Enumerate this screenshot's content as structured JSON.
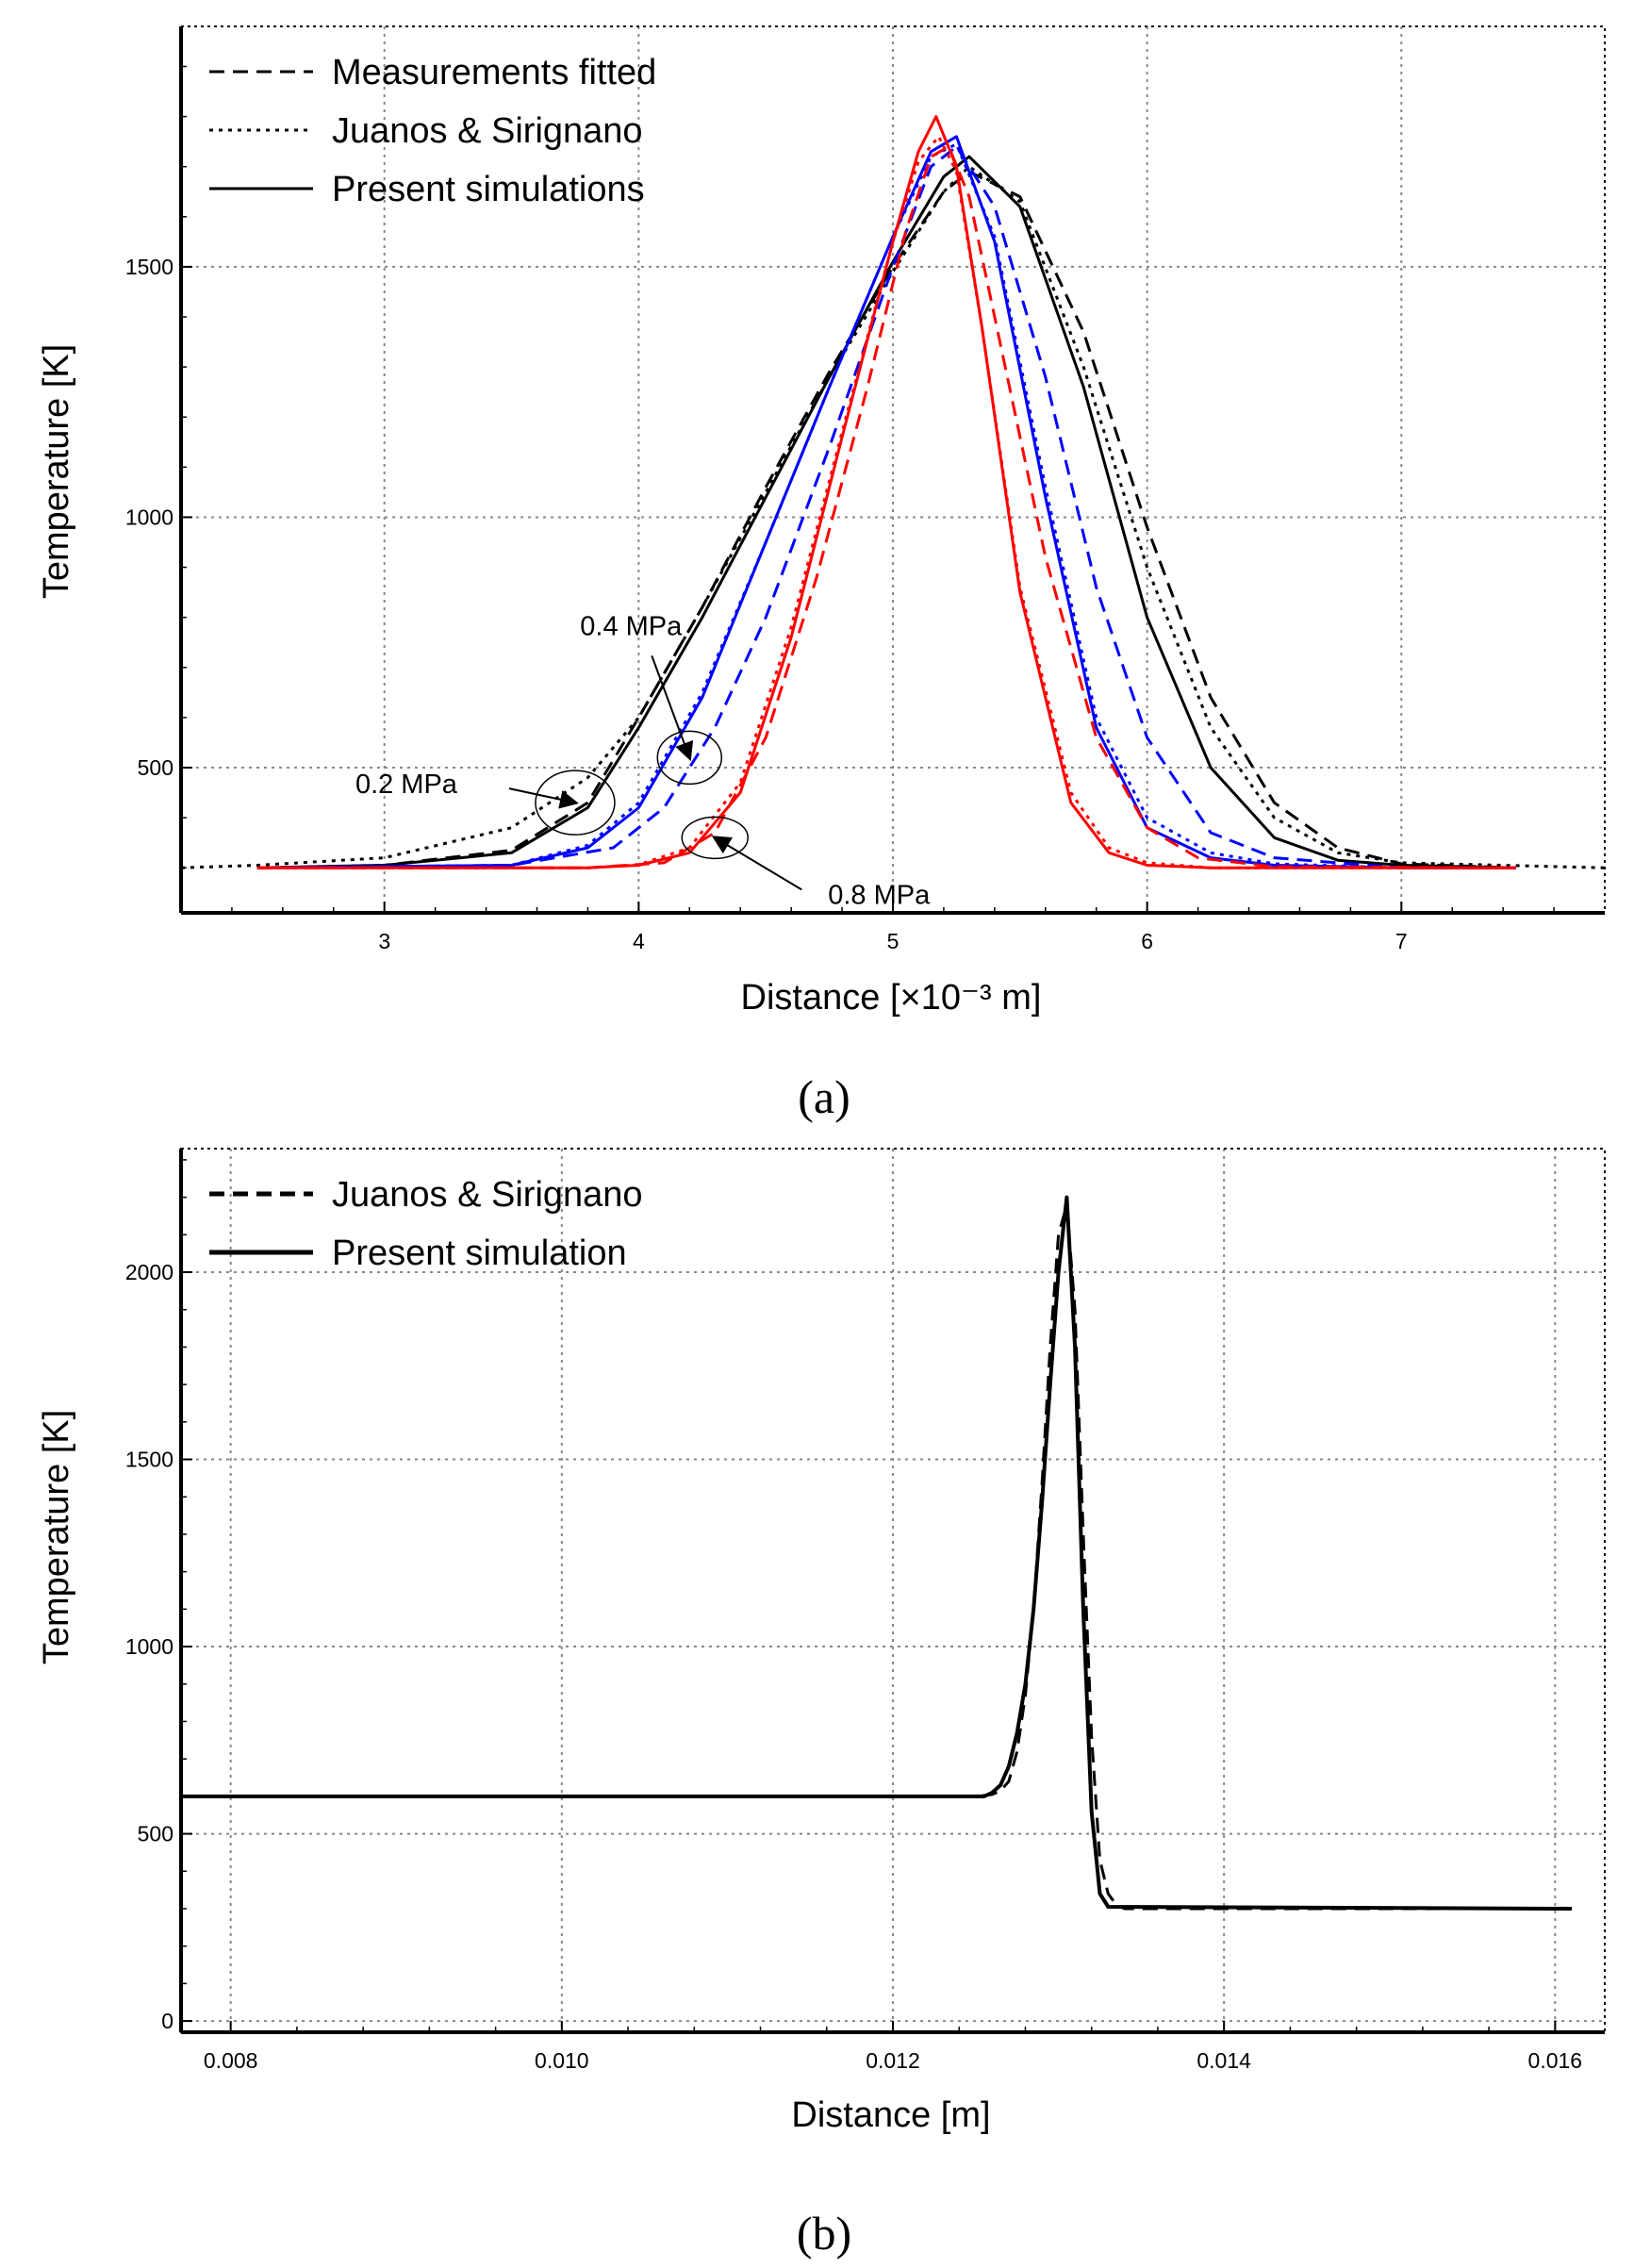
{
  "chart_data": [
    {
      "type": "line",
      "caption": "(a)",
      "xlabel": "Distance [×10⁻³ m]",
      "ylabel": "Temperature [K]",
      "xlim": [
        2.2,
        7.8
      ],
      "ylim": [
        210,
        1980
      ],
      "xticks": [
        3,
        4,
        5,
        6,
        7
      ],
      "yticks": [
        500,
        1000,
        1500
      ],
      "grid": true,
      "legend_position": "top-left",
      "legend": [
        {
          "label": "Measurements fitted",
          "style": "dashed"
        },
        {
          "label": "Juanos & Sirignano",
          "style": "dotted"
        },
        {
          "label": "Present simulations",
          "style": "solid"
        }
      ],
      "annotations": [
        {
          "text": "0.4 MPa",
          "x": 4.2,
          "y": 520
        },
        {
          "text": "0.2 MPa",
          "x": 3.75,
          "y": 430
        },
        {
          "text": "0.8 MPa",
          "x": 4.3,
          "y": 360
        }
      ],
      "colors": {
        "0.2 MPa": "#000000",
        "0.4 MPa": "#0000ff",
        "0.8 MPa": "#ff0000"
      },
      "series": [
        {
          "pressure": "0.2 MPa",
          "style": "solid",
          "x": [
            2.5,
            3.0,
            3.5,
            3.8,
            4.0,
            4.25,
            4.5,
            4.75,
            5.0,
            5.2,
            5.3,
            5.5,
            5.75,
            6.0,
            6.25,
            6.5,
            6.75,
            7.0,
            7.45
          ],
          "values": [
            300,
            305,
            330,
            420,
            580,
            800,
            1040,
            1280,
            1510,
            1680,
            1720,
            1620,
            1260,
            800,
            500,
            360,
            315,
            305,
            300
          ]
        },
        {
          "pressure": "0.2 MPa",
          "style": "dashed",
          "x": [
            2.5,
            3.0,
            3.5,
            3.8,
            4.0,
            4.25,
            4.5,
            4.75,
            5.0,
            5.2,
            5.3,
            5.5,
            5.75,
            6.0,
            6.25,
            6.5,
            6.75,
            7.0,
            7.45
          ],
          "values": [
            300,
            305,
            335,
            430,
            600,
            820,
            1060,
            1290,
            1500,
            1650,
            1690,
            1640,
            1370,
            980,
            640,
            430,
            340,
            308,
            300
          ]
        },
        {
          "pressure": "0.2 MPa",
          "style": "dotted",
          "x": [
            2.2,
            2.5,
            3.0,
            3.5,
            3.8,
            4.0,
            4.25,
            4.5,
            4.75,
            5.0,
            5.2,
            5.3,
            5.5,
            5.75,
            6.0,
            6.25,
            6.5,
            6.75,
            7.0,
            7.8
          ],
          "values": [
            300,
            305,
            320,
            380,
            480,
            600,
            820,
            1050,
            1280,
            1490,
            1650,
            1700,
            1630,
            1300,
            900,
            580,
            400,
            330,
            310,
            300
          ]
        },
        {
          "pressure": "0.4 MPa",
          "style": "solid",
          "x": [
            2.5,
            3.5,
            3.8,
            4.0,
            4.25,
            4.5,
            4.75,
            5.0,
            5.15,
            5.25,
            5.4,
            5.6,
            5.8,
            6.0,
            6.25,
            6.5,
            7.0,
            7.45
          ],
          "values": [
            300,
            305,
            340,
            420,
            640,
            950,
            1260,
            1560,
            1730,
            1760,
            1550,
            1040,
            580,
            380,
            320,
            305,
            300,
            300
          ]
        },
        {
          "pressure": "0.4 MPa",
          "style": "dashed",
          "x": [
            2.5,
            3.5,
            3.9,
            4.1,
            4.3,
            4.5,
            4.75,
            5.0,
            5.15,
            5.25,
            5.4,
            5.6,
            5.8,
            6.0,
            6.25,
            6.5,
            7.0,
            7.45
          ],
          "values": [
            300,
            305,
            340,
            420,
            580,
            800,
            1140,
            1500,
            1700,
            1740,
            1620,
            1280,
            860,
            560,
            370,
            320,
            300,
            300
          ]
        },
        {
          "pressure": "0.4 MPa",
          "style": "dotted",
          "x": [
            2.5,
            3.5,
            3.8,
            4.0,
            4.25,
            4.5,
            4.75,
            5.0,
            5.15,
            5.25,
            5.4,
            5.6,
            5.8,
            6.0,
            6.25,
            6.5,
            7.0,
            7.45
          ],
          "values": [
            300,
            305,
            345,
            430,
            650,
            950,
            1260,
            1560,
            1720,
            1745,
            1560,
            1060,
            600,
            400,
            330,
            308,
            300,
            300
          ]
        },
        {
          "pressure": "0.8 MPa",
          "style": "solid",
          "x": [
            2.5,
            3.8,
            4.0,
            4.2,
            4.4,
            4.6,
            4.8,
            5.0,
            5.1,
            5.17,
            5.25,
            5.35,
            5.5,
            5.7,
            5.85,
            6.0,
            6.25,
            7.45
          ],
          "values": [
            300,
            300,
            305,
            330,
            450,
            760,
            1160,
            1550,
            1730,
            1800,
            1700,
            1380,
            850,
            430,
            330,
            305,
            300,
            300
          ]
        },
        {
          "pressure": "0.8 MPa",
          "style": "dashed",
          "x": [
            2.5,
            3.8,
            4.1,
            4.3,
            4.5,
            4.7,
            4.9,
            5.05,
            5.15,
            5.22,
            5.3,
            5.4,
            5.6,
            5.8,
            6.0,
            6.2,
            6.5,
            7.45
          ],
          "values": [
            300,
            300,
            310,
            370,
            560,
            880,
            1260,
            1570,
            1720,
            1740,
            1640,
            1400,
            920,
            560,
            380,
            320,
            302,
            300
          ]
        },
        {
          "pressure": "0.8 MPa",
          "style": "dotted",
          "x": [
            2.5,
            3.8,
            4.0,
            4.2,
            4.4,
            4.6,
            4.8,
            5.0,
            5.1,
            5.18,
            5.25,
            5.35,
            5.5,
            5.7,
            5.85,
            6.0,
            6.25,
            7.45
          ],
          "values": [
            300,
            300,
            306,
            340,
            470,
            780,
            1170,
            1550,
            1710,
            1760,
            1690,
            1380,
            860,
            450,
            340,
            310,
            300,
            300
          ]
        }
      ]
    },
    {
      "type": "line",
      "caption": "(b)",
      "xlabel": "Distance [m]",
      "ylabel": "Temperature [K]",
      "xlim": [
        0.0077,
        0.0163
      ],
      "ylim": [
        -30,
        2330
      ],
      "xticks": [
        0.008,
        0.01,
        0.012,
        0.014,
        0.016
      ],
      "xtick_labels": [
        "0.008",
        "0.010",
        "0.012",
        "0.014",
        "0.016"
      ],
      "yticks": [
        0,
        500,
        1000,
        1500,
        2000
      ],
      "grid": true,
      "legend_position": "top-left",
      "legend": [
        {
          "label": "Juanos & Sirignano",
          "style": "dashed"
        },
        {
          "label": "Present simulation",
          "style": "solid"
        }
      ],
      "series": [
        {
          "name": "Juanos & Sirignano",
          "style": "dashed",
          "x": [
            0.0077,
            0.0125,
            0.0126,
            0.01265,
            0.0127,
            0.01275,
            0.0128,
            0.01285,
            0.0129,
            0.01295,
            0.013,
            0.01305,
            0.0131,
            0.01315,
            0.0132,
            0.01325,
            0.0133,
            0.01335,
            0.0134,
            0.0161
          ],
          "values": [
            600,
            600,
            605,
            615,
            640,
            720,
            870,
            1100,
            1430,
            1800,
            2100,
            2180,
            1900,
            1300,
            760,
            430,
            340,
            310,
            300,
            300
          ]
        },
        {
          "name": "Present simulation",
          "style": "solid",
          "x": [
            0.0077,
            0.01255,
            0.0126,
            0.01265,
            0.0127,
            0.01275,
            0.0128,
            0.01285,
            0.0129,
            0.01295,
            0.013,
            0.01305,
            0.0131,
            0.01315,
            0.0132,
            0.01325,
            0.0133,
            0.0161
          ],
          "values": [
            600,
            600,
            610,
            630,
            680,
            770,
            900,
            1100,
            1380,
            1700,
            2000,
            2200,
            1800,
            1100,
            560,
            340,
            305,
            300
          ]
        }
      ]
    }
  ]
}
